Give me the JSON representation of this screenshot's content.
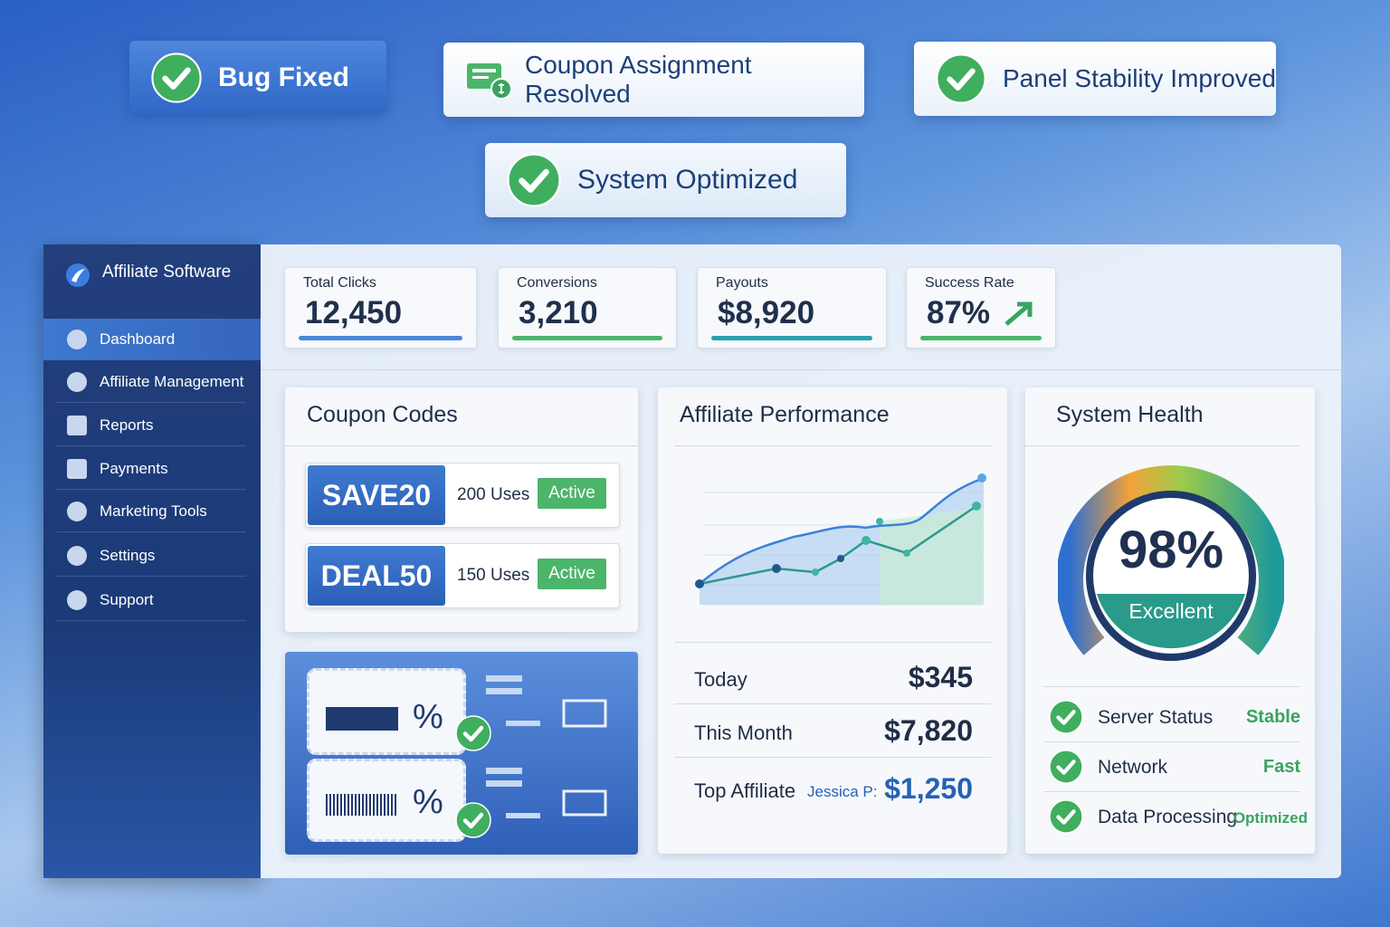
{
  "badges": [
    {
      "label": "Bug Fixed"
    },
    {
      "label": "Coupon Assignment Resolved"
    },
    {
      "label": "Panel Stability Improved"
    },
    {
      "label": "System Optimized"
    }
  ],
  "sidebar": {
    "title": "Affiliate Software",
    "items": [
      "Dashboard",
      "Affiliate Management",
      "Reports",
      "Payments",
      "Marketing Tools",
      "Settings",
      "Support"
    ]
  },
  "stats": [
    {
      "label": "Total Clicks",
      "value": "12,450"
    },
    {
      "label": "Conversions",
      "value": "3,210"
    },
    {
      "label": "Payouts",
      "value": "$8,920"
    },
    {
      "label": "Success Rate",
      "value": "87%"
    }
  ],
  "coupons": {
    "title": "Coupon Codes",
    "rows": [
      {
        "code": "SAVE20",
        "uses": "200 Uses",
        "status": "Active"
      },
      {
        "code": "DEAL50",
        "uses": "150 Uses",
        "status": "Active"
      }
    ],
    "promo_cards": [
      {
        "symbol": "%"
      },
      {
        "symbol": "%"
      }
    ]
  },
  "performance": {
    "title": "Affiliate Performance",
    "rows": [
      {
        "label": "Today",
        "value": "$345"
      },
      {
        "label": "This Month",
        "value": "$7,820"
      },
      {
        "label": "Top Affiliate",
        "name": "Jessica P:",
        "value": "$1,250"
      }
    ]
  },
  "health": {
    "title": "System Health",
    "score": "98%",
    "rating": "Excellent",
    "checks": [
      {
        "label": "Server Status",
        "status": "Stable"
      },
      {
        "label": "Network",
        "status": "Fast"
      },
      {
        "label": "Data Processing",
        "status": "Optimized"
      }
    ]
  }
}
